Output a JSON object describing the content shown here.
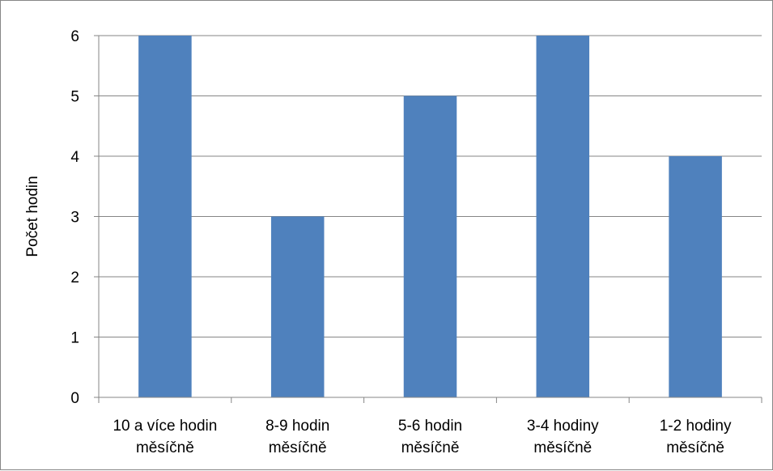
{
  "chart_data": {
    "type": "bar",
    "categories": [
      [
        "10 a více hodin",
        "měsíčně"
      ],
      [
        "8-9 hodin",
        "měsíčně"
      ],
      [
        "5-6 hodin",
        "měsíčně"
      ],
      [
        "3-4 hodiny",
        "měsíčně"
      ],
      [
        "1-2 hodiny",
        "měsíčně"
      ]
    ],
    "values": [
      6,
      3,
      5,
      6,
      4
    ],
    "title": "",
    "xlabel": "",
    "ylabel": "Počet hodin",
    "ylim": [
      0,
      6
    ],
    "yticks": [
      0,
      1,
      2,
      3,
      4,
      5,
      6
    ],
    "grid": true,
    "legend": "none",
    "bar_color": "#4F81BD",
    "gridline_color": "#868686"
  }
}
